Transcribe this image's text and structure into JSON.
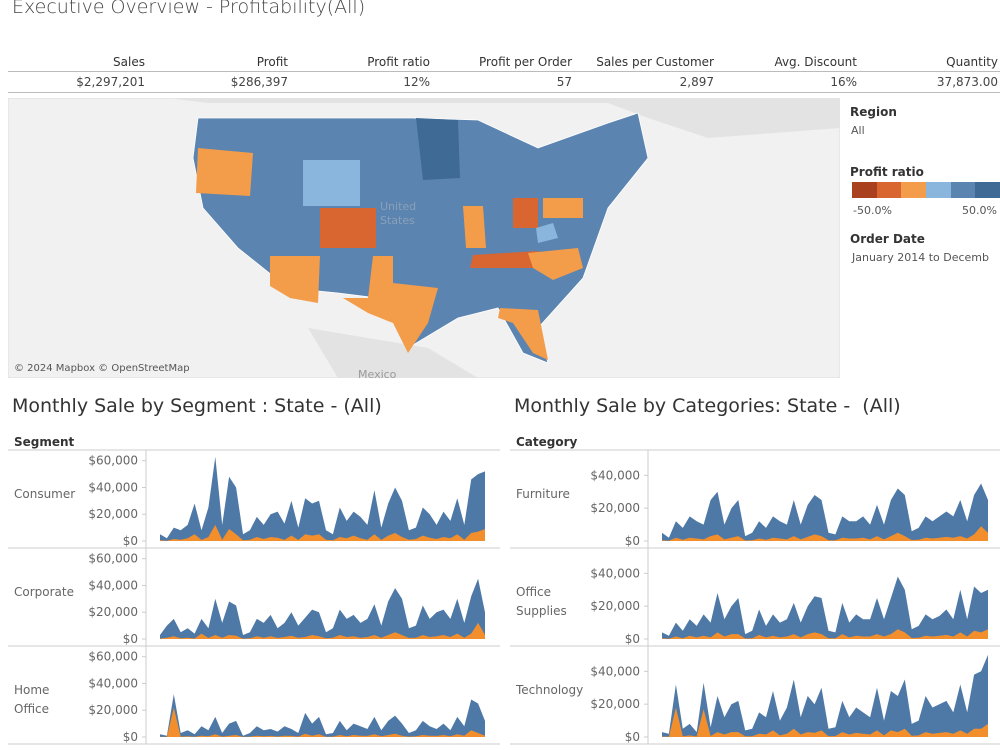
{
  "header": {
    "title": "Executive Overview - Profitability(All)"
  },
  "kpis": [
    {
      "label": "Sales",
      "value": "$2,297,201"
    },
    {
      "label": "Profit",
      "value": "$286,397"
    },
    {
      "label": "Profit ratio",
      "value": "12%"
    },
    {
      "label": "Profit per Order",
      "value": "57"
    },
    {
      "label": "Sales per Customer",
      "value": "2,897"
    },
    {
      "label": "Avg. Discount",
      "value": "16%"
    },
    {
      "label": "Quantity",
      "value": "37,873.00"
    }
  ],
  "map": {
    "attribution": "© 2024 Mapbox © OpenStreetMap",
    "country_line1": "United",
    "country_line2": "States",
    "neighbor": "Mexico"
  },
  "legend": {
    "region_title": "Region",
    "region_value": "All",
    "profit_title": "Profit ratio",
    "profit_min": "-50.0%",
    "profit_max": "50.0%",
    "date_title": "Order Date",
    "date_value": "January 2014 to Decemb"
  },
  "chart_data": [
    {
      "type": "area",
      "title": "Monthly Sale by Segment : State - (All)",
      "facet_label": "Segment",
      "ylim": [
        0,
        65000
      ],
      "yticks": [
        {
          "value": 0,
          "label": "$0"
        },
        {
          "value": 20000,
          "label": "$20,000"
        },
        {
          "value": 40000,
          "label": "$40,000"
        },
        {
          "value": 60000,
          "label": "$60,000"
        }
      ],
      "panels": [
        {
          "name": "Consumer",
          "series": [
            {
              "color": "#4e79a7",
              "values": [
                5000,
                2000,
                10000,
                8000,
                12000,
                28000,
                8000,
                25000,
                63000,
                12000,
                48000,
                40000,
                5000,
                8000,
                18000,
                12000,
                20000,
                22000,
                13000,
                30000,
                10000,
                32000,
                28000,
                30000,
                8000,
                5000,
                25000,
                15000,
                22000,
                18000,
                12000,
                38000,
                10000,
                28000,
                40000,
                30000,
                8000,
                10000,
                25000,
                20000,
                12000,
                22000,
                15000,
                32000,
                12000,
                46000,
                50000,
                52000
              ]
            },
            {
              "color": "#f28e2b",
              "values": [
                500,
                200,
                1500,
                1000,
                2000,
                5000,
                800,
                3000,
                12000,
                1000,
                9000,
                5000,
                500,
                1000,
                3000,
                1500,
                3000,
                2500,
                1000,
                4000,
                800,
                5000,
                4000,
                5000,
                1000,
                500,
                3000,
                2000,
                4000,
                2000,
                1000,
                5000,
                800,
                4000,
                6000,
                3000,
                1000,
                1500,
                4000,
                2500,
                1500,
                3000,
                2000,
                5000,
                1000,
                6000,
                7000,
                9000
              ]
            }
          ]
        },
        {
          "name": "Corporate",
          "series": [
            {
              "color": "#4e79a7",
              "values": [
                3000,
                10000,
                15000,
                5000,
                8000,
                4000,
                15000,
                8000,
                30000,
                12000,
                28000,
                25000,
                3000,
                5000,
                15000,
                12000,
                18000,
                8000,
                12000,
                20000,
                10000,
                16000,
                22000,
                20000,
                5000,
                8000,
                22000,
                15000,
                18000,
                12000,
                15000,
                26000,
                10000,
                28000,
                38000,
                30000,
                8000,
                10000,
                25000,
                15000,
                20000,
                22000,
                15000,
                30000,
                12000,
                32000,
                45000,
                20000
              ]
            },
            {
              "color": "#f28e2b",
              "values": [
                300,
                1000,
                2000,
                500,
                1000,
                400,
                4000,
                800,
                3000,
                1000,
                3000,
                2500,
                300,
                500,
                2000,
                1000,
                2000,
                800,
                1500,
                2500,
                1000,
                1500,
                3000,
                2000,
                500,
                1000,
                3000,
                1500,
                2000,
                1000,
                1500,
                3000,
                1000,
                3000,
                5000,
                3000,
                800,
                1000,
                3000,
                1500,
                2000,
                3000,
                1500,
                4000,
                1000,
                4000,
                12000,
                3000
              ]
            }
          ]
        },
        {
          "name": "Home Office",
          "series": [
            {
              "color": "#4e79a7",
              "values": [
                2000,
                1000,
                32000,
                3000,
                5000,
                2000,
                8000,
                5000,
                15000,
                3000,
                10000,
                12000,
                1000,
                3000,
                8000,
                5000,
                6000,
                4000,
                8000,
                6000,
                3000,
                18000,
                10000,
                15000,
                2000,
                3000,
                12000,
                5000,
                10000,
                8000,
                6000,
                15000,
                5000,
                12000,
                16000,
                10000,
                3000,
                5000,
                12000,
                8000,
                6000,
                10000,
                5000,
                15000,
                8000,
                28000,
                25000,
                12000
              ]
            },
            {
              "color": "#f28e2b",
              "values": [
                200,
                100,
                22000,
                300,
                500,
                200,
                1000,
                500,
                2000,
                300,
                1000,
                1500,
                100,
                300,
                1000,
                500,
                800,
                400,
                1000,
                800,
                300,
                2500,
                1000,
                2000,
                200,
                300,
                1500,
                500,
                1500,
                1000,
                800,
                2000,
                500,
                1500,
                2500,
                1000,
                300,
                500,
                1500,
                1000,
                800,
                1500,
                500,
                2000,
                1000,
                5000,
                3000,
                1000
              ]
            }
          ]
        }
      ]
    },
    {
      "type": "area",
      "title": "Monthly Sale by Categories: State -  (All)",
      "facet_label": "Category",
      "ylim": [
        0,
        53000
      ],
      "yticks": [
        {
          "value": 0,
          "label": "$0"
        },
        {
          "value": 20000,
          "label": "$20,000"
        },
        {
          "value": 40000,
          "label": "$40,000"
        }
      ],
      "panels": [
        {
          "name": "Furniture",
          "series": [
            {
              "color": "#4e79a7",
              "values": [
                5000,
                2000,
                12000,
                8000,
                15000,
                12000,
                10000,
                25000,
                30000,
                10000,
                20000,
                25000,
                3000,
                5000,
                12000,
                8000,
                15000,
                12000,
                10000,
                25000,
                10000,
                22000,
                28000,
                25000,
                5000,
                4000,
                15000,
                12000,
                12000,
                15000,
                10000,
                22000,
                10000,
                25000,
                32000,
                28000,
                6000,
                8000,
                15000,
                12000,
                15000,
                18000,
                15000,
                25000,
                12000,
                28000,
                35000,
                25000
              ]
            },
            {
              "color": "#f28e2b",
              "values": [
                500,
                200,
                2000,
                800,
                2000,
                1500,
                1000,
                3000,
                4000,
                1000,
                2000,
                3000,
                300,
                500,
                1500,
                800,
                2000,
                1500,
                1000,
                3000,
                1000,
                2500,
                4000,
                3000,
                500,
                400,
                2000,
                1500,
                1500,
                2000,
                1000,
                3000,
                1000,
                3000,
                5000,
                3000,
                600,
                800,
                2000,
                1500,
                2000,
                2500,
                2000,
                3000,
                1500,
                4000,
                9000,
                5000
              ]
            }
          ]
        },
        {
          "name": "Office Supplies",
          "series": [
            {
              "color": "#4e79a7",
              "values": [
                4000,
                2000,
                10000,
                5000,
                12000,
                8000,
                15000,
                10000,
                28000,
                12000,
                20000,
                25000,
                3000,
                5000,
                18000,
                8000,
                15000,
                10000,
                12000,
                22000,
                10000,
                20000,
                26000,
                25000,
                5000,
                4000,
                22000,
                10000,
                15000,
                12000,
                12000,
                25000,
                12000,
                25000,
                38000,
                30000,
                6000,
                8000,
                15000,
                12000,
                14000,
                18000,
                12000,
                30000,
                12000,
                32000,
                28000,
                30000
              ]
            },
            {
              "color": "#f28e2b",
              "values": [
                400,
                200,
                1500,
                500,
                2000,
                1000,
                2000,
                1000,
                4000,
                1500,
                3000,
                3000,
                300,
                500,
                2500,
                1000,
                2000,
                1000,
                1500,
                3000,
                1000,
                3000,
                4000,
                3000,
                500,
                400,
                3000,
                1000,
                2000,
                1500,
                1500,
                3000,
                1500,
                3000,
                6000,
                4000,
                600,
                800,
                2000,
                1500,
                2000,
                2500,
                1500,
                4000,
                1500,
                5000,
                4000,
                6000
              ]
            }
          ]
        },
        {
          "name": "Technology",
          "series": [
            {
              "color": "#4e79a7",
              "values": [
                3000,
                2000,
                32000,
                5000,
                8000,
                3000,
                33000,
                6000,
                25000,
                12000,
                20000,
                22000,
                4000,
                5000,
                15000,
                12000,
                28000,
                10000,
                18000,
                35000,
                12000,
                25000,
                20000,
                30000,
                5000,
                6000,
                22000,
                12000,
                18000,
                15000,
                12000,
                30000,
                10000,
                28000,
                25000,
                35000,
                8000,
                10000,
                25000,
                18000,
                20000,
                22000,
                15000,
                32000,
                15000,
                38000,
                40000,
                50000
              ]
            },
            {
              "color": "#f28e2b",
              "values": [
                300,
                200,
                18000,
                500,
                1000,
                300,
                17000,
                600,
                3000,
                1500,
                3000,
                3000,
                400,
                500,
                2000,
                1500,
                4000,
                1000,
                2000,
                5000,
                1500,
                3000,
                2500,
                4000,
                500,
                600,
                3000,
                1500,
                2500,
                2000,
                1500,
                4000,
                1000,
                4000,
                3000,
                5000,
                800,
                1000,
                3000,
                2000,
                2500,
                3000,
                2000,
                4000,
                2000,
                5000,
                5000,
                8000
              ]
            }
          ]
        }
      ]
    }
  ]
}
